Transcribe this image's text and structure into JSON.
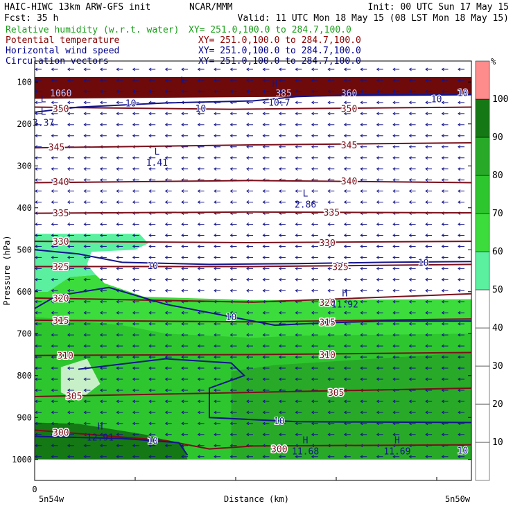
{
  "header": {
    "left1": "HAIC-HIWC 13km ARW-GFS init",
    "center1": "NCAR/MMM",
    "right1": "Init: 00 UTC Sun 17 May 15",
    "left2": "Fcst:    35 h",
    "right2": "Valid: 11 UTC Mon 18 May 15 (08 LST Mon 18 May 15)"
  },
  "legend": [
    {
      "name": "Relative humidity (w.r.t. water)",
      "xy": "XY= 251.0,100.0 to 284.7,100.0",
      "color": "#1a9e1a"
    },
    {
      "name": "Potential temperature",
      "xy": "XY= 251.0,100.0 to 284.7,100.0",
      "color": "#8b0000"
    },
    {
      "name": "Horizontal wind speed",
      "xy": "XY= 251.0,100.0 to 284.7,100.0",
      "color": "#00008b"
    },
    {
      "name": "Circulation vectors",
      "xy": "XY= 251.0,100.0 to 284.7,100.0",
      "color": "#00008b"
    }
  ],
  "colors": {
    "theta": "#7a0f1a",
    "wind": "#14148c",
    "text_blue": "#14148c",
    "axis": "#000000"
  },
  "chart_data": {
    "type": "heatmap",
    "xlabel": "Distance (km)",
    "ylabel": "Pressure (hPa)",
    "x_start_tick": "0",
    "x_left_label": "5n54w",
    "x_right_label": "5n50w",
    "ylim": [
      1050,
      50
    ],
    "y_ticks": [
      100,
      200,
      300,
      400,
      500,
      600,
      700,
      800,
      900,
      1000
    ],
    "rh_colorbar": {
      "unit": "%",
      "levels": [
        10,
        20,
        30,
        40,
        50,
        60,
        70,
        80,
        90,
        100
      ],
      "colors": [
        "#ffffff",
        "#ffffff",
        "#ffffff",
        "#ffffff",
        "#ffffff",
        "#5af0a0",
        "#3cdc3c",
        "#2ec62e",
        "#28aa28",
        "#147814",
        "#ff8c8c"
      ]
    },
    "theta_contours": [
      {
        "label": "350",
        "levels": [
          [
            0,
            160
          ],
          [
            0.45,
            165
          ],
          [
            1,
            160
          ]
        ],
        "label_positions": [
          [
            0.06,
            163
          ],
          [
            0.72,
            163
          ]
        ]
      },
      {
        "label": "345",
        "levels": [
          [
            0,
            257
          ],
          [
            0.5,
            250
          ],
          [
            1,
            245
          ]
        ],
        "label_positions": [
          [
            0.05,
            255
          ],
          [
            0.72,
            250
          ]
        ]
      },
      {
        "label": "340",
        "levels": [
          [
            0,
            340
          ],
          [
            0.5,
            335
          ],
          [
            1,
            340
          ]
        ],
        "label_positions": [
          [
            0.06,
            338
          ],
          [
            0.72,
            336
          ]
        ]
      },
      {
        "label": "335",
        "levels": [
          [
            0,
            413
          ],
          [
            0.5,
            410
          ],
          [
            1,
            412
          ]
        ],
        "label_positions": [
          [
            0.06,
            412
          ],
          [
            0.68,
            410
          ]
        ]
      },
      {
        "label": "330",
        "levels": [
          [
            0,
            480
          ],
          [
            0.5,
            483
          ],
          [
            1,
            480
          ]
        ],
        "label_positions": [
          [
            0.06,
            480
          ],
          [
            0.67,
            483
          ]
        ]
      },
      {
        "label": "325",
        "levels": [
          [
            0,
            540
          ],
          [
            0.5,
            540
          ],
          [
            1,
            535
          ]
        ],
        "label_positions": [
          [
            0.06,
            540
          ],
          [
            0.7,
            540
          ]
        ]
      },
      {
        "label": "320",
        "levels": [
          [
            0,
            615
          ],
          [
            0.5,
            625
          ],
          [
            1,
            605
          ]
        ],
        "label_positions": [
          [
            0.06,
            615
          ],
          [
            0.67,
            625
          ]
        ]
      },
      {
        "label": "315",
        "levels": [
          [
            0,
            668
          ],
          [
            0.5,
            672
          ],
          [
            1,
            665
          ]
        ],
        "label_positions": [
          [
            0.06,
            668
          ],
          [
            0.67,
            672
          ]
        ]
      },
      {
        "label": "310",
        "levels": [
          [
            0,
            752
          ],
          [
            0.5,
            750
          ],
          [
            1,
            745
          ]
        ],
        "label_positions": [
          [
            0.07,
            752
          ],
          [
            0.67,
            750
          ]
        ]
      },
      {
        "label": "305",
        "levels": [
          [
            0,
            850
          ],
          [
            0.5,
            840
          ],
          [
            1,
            830
          ]
        ],
        "label_positions": [
          [
            0.09,
            848
          ],
          [
            0.69,
            840
          ]
        ]
      },
      {
        "label": "300",
        "levels": [
          [
            0,
            930
          ],
          [
            0.3,
            955
          ],
          [
            0.4,
            975
          ],
          [
            0.5,
            968
          ],
          [
            1,
            965
          ]
        ],
        "label_positions": [
          [
            0.06,
            935
          ],
          [
            0.56,
            975
          ]
        ]
      }
    ],
    "theta_top_labels": [
      "1060",
      "360",
      "385"
    ],
    "wind_speed_labels": [
      {
        "text": "10",
        "at": [
          0.22,
          150
        ]
      },
      {
        "text": "10",
        "at": [
          0.38,
          162
        ]
      },
      {
        "text": "10.7",
        "at": [
          0.56,
          148
        ]
      },
      {
        "text": "10",
        "at": [
          0.92,
          140
        ]
      },
      {
        "text": "10",
        "at": [
          0.98,
          125
        ]
      },
      {
        "text": "10",
        "at": [
          0.27,
          538
        ]
      },
      {
        "text": "10",
        "at": [
          0.89,
          530
        ]
      },
      {
        "text": "10",
        "at": [
          0.45,
          660
        ]
      },
      {
        "text": "10",
        "at": [
          0.56,
          908
        ]
      },
      {
        "text": "10",
        "at": [
          0.27,
          955
        ]
      },
      {
        "text": "10",
        "at": [
          0.98,
          978
        ]
      }
    ],
    "extrema": [
      {
        "type": "L",
        "value": "3.37",
        "at": [
          0.02,
          185
        ]
      },
      {
        "type": "L",
        "value": "1.41",
        "at": [
          0.28,
          280
        ]
      },
      {
        "type": "L",
        "value": "2.86",
        "at": [
          0.62,
          380
        ]
      },
      {
        "type": "H",
        "value": "11.92",
        "at": [
          0.71,
          618
        ]
      },
      {
        "type": "H",
        "value": "12.91",
        "at": [
          0.15,
          935
        ]
      },
      {
        "type": "H",
        "value": "11.68",
        "at": [
          0.62,
          968
        ]
      },
      {
        "type": "H",
        "value": "11.69",
        "at": [
          0.83,
          968
        ]
      },
      {
        "type": "H",
        "value": "",
        "at": [
          0.55,
          118
        ]
      },
      {
        "type": "L",
        "value": "",
        "at": [
          0.34,
          110
        ]
      },
      {
        "type": "L",
        "value": "",
        "at": [
          0.02,
          155
        ]
      }
    ],
    "vectors": {
      "direction": "westward",
      "grid_cols": 27,
      "grid_rows": 36
    }
  }
}
